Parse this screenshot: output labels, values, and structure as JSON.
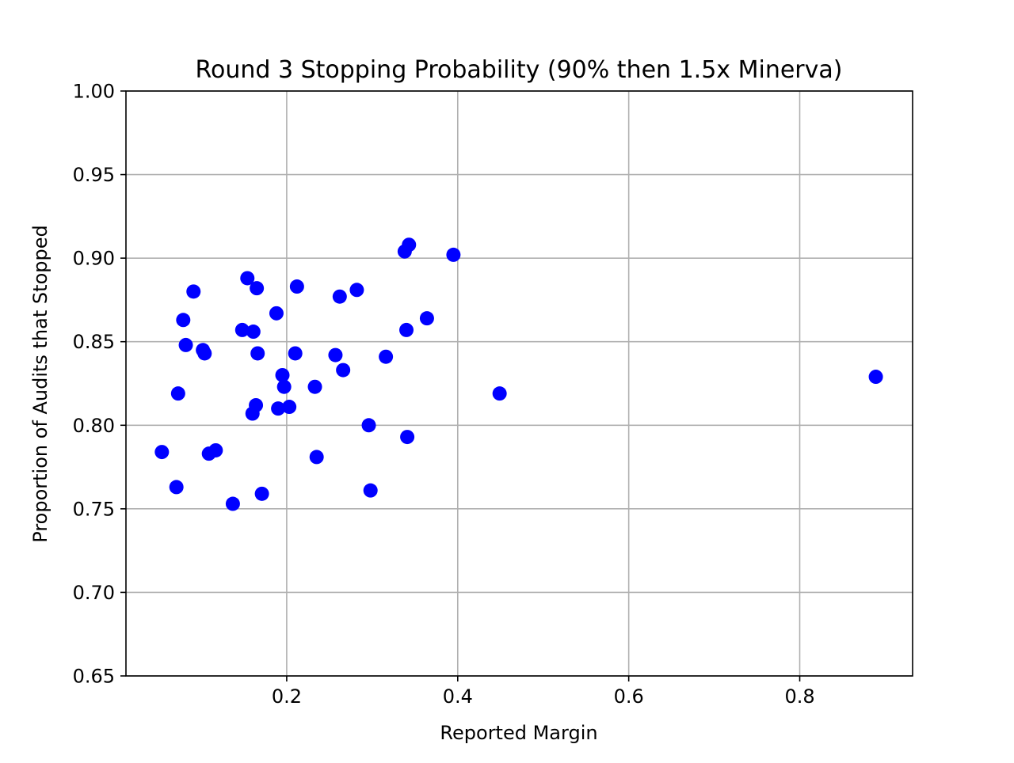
{
  "chart_data": {
    "type": "scatter",
    "title": "Round 3 Stopping Probability (90% then 1.5x Minerva)",
    "xlabel": "Reported Margin",
    "ylabel": "Proportion of Audits that Stopped",
    "xlim": [
      0.012,
      0.932
    ],
    "ylim": [
      0.65,
      1.0
    ],
    "x_ticks": [
      0.2,
      0.4,
      0.6,
      0.8
    ],
    "x_tick_labels": [
      "0.2",
      "0.4",
      "0.6",
      "0.8"
    ],
    "y_ticks": [
      0.65,
      0.7,
      0.75,
      0.8,
      0.85,
      0.9,
      0.95,
      1.0
    ],
    "y_tick_labels": [
      "0.65",
      "0.70",
      "0.75",
      "0.80",
      "0.85",
      "0.90",
      "0.95",
      "1.00"
    ],
    "grid": true,
    "marker_color": "#0000ff",
    "series": [
      {
        "x": [
          0.054,
          0.071,
          0.073,
          0.079,
          0.082,
          0.091,
          0.102,
          0.104,
          0.109,
          0.117,
          0.137,
          0.148,
          0.154,
          0.16,
          0.161,
          0.164,
          0.165,
          0.166,
          0.171,
          0.188,
          0.19,
          0.195,
          0.197,
          0.203,
          0.21,
          0.212,
          0.233,
          0.235,
          0.257,
          0.262,
          0.266,
          0.282,
          0.296,
          0.298,
          0.316,
          0.338,
          0.34,
          0.341,
          0.343,
          0.364,
          0.395,
          0.449,
          0.889
        ],
        "y": [
          0.784,
          0.763,
          0.819,
          0.863,
          0.848,
          0.88,
          0.845,
          0.843,
          0.783,
          0.785,
          0.753,
          0.857,
          0.888,
          0.807,
          0.856,
          0.812,
          0.882,
          0.843,
          0.759,
          0.867,
          0.81,
          0.83,
          0.823,
          0.811,
          0.843,
          0.883,
          0.823,
          0.781,
          0.842,
          0.877,
          0.833,
          0.881,
          0.8,
          0.761,
          0.841,
          0.904,
          0.857,
          0.793,
          0.908,
          0.864,
          0.902,
          0.819,
          0.829
        ]
      }
    ]
  }
}
